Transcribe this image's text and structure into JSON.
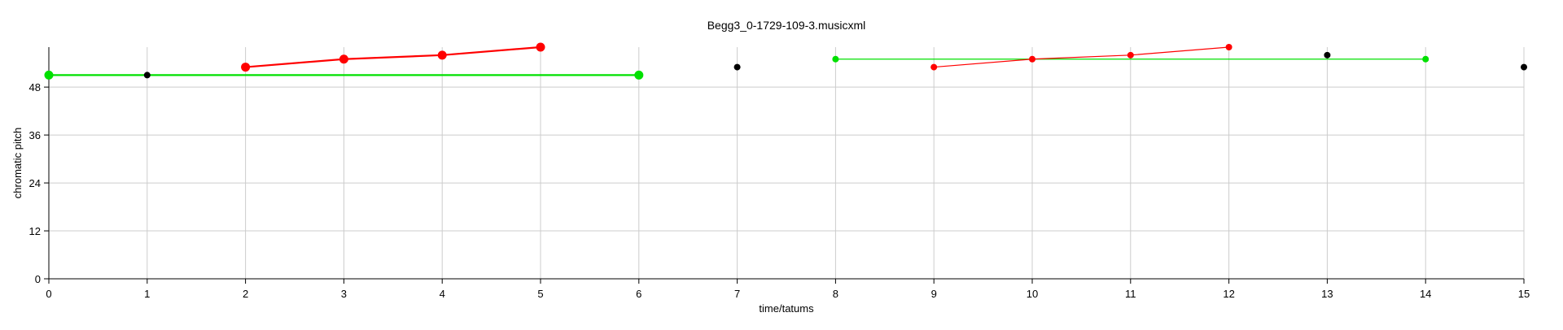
{
  "chart_data": {
    "type": "scatter",
    "title": "Begg3_0-1729-109-3.musicxml",
    "xlabel": "time/tatums",
    "ylabel": "chromatic pitch",
    "xlim": [
      0,
      15
    ],
    "ylim": [
      0,
      58
    ],
    "x_ticks": [
      0,
      1,
      2,
      3,
      4,
      5,
      6,
      7,
      8,
      9,
      10,
      11,
      12,
      13,
      14,
      15
    ],
    "y_ticks": [
      0,
      12,
      24,
      36,
      48
    ],
    "grid": true,
    "colors": {
      "red": "#ff0000",
      "green": "#00e000",
      "black": "#000000",
      "grid": "#cccccc"
    },
    "series": [
      {
        "color": "green",
        "connected": true,
        "marker": "large",
        "points": [
          {
            "x": 0,
            "y": 51
          },
          {
            "x": 6,
            "y": 51
          }
        ]
      },
      {
        "color": "red",
        "connected": true,
        "marker": "large",
        "points": [
          {
            "x": 2,
            "y": 53
          },
          {
            "x": 3,
            "y": 55
          },
          {
            "x": 4,
            "y": 56
          },
          {
            "x": 5,
            "y": 58
          }
        ]
      },
      {
        "color": "green",
        "connected": true,
        "marker": "small",
        "points": [
          {
            "x": 8,
            "y": 55
          },
          {
            "x": 14,
            "y": 55
          }
        ]
      },
      {
        "color": "red",
        "connected": true,
        "marker": "small",
        "points": [
          {
            "x": 9,
            "y": 53
          },
          {
            "x": 10,
            "y": 55
          },
          {
            "x": 11,
            "y": 56
          },
          {
            "x": 12,
            "y": 58
          }
        ]
      },
      {
        "color": "black",
        "connected": false,
        "marker": "small",
        "points": [
          {
            "x": 1,
            "y": 51
          },
          {
            "x": 7,
            "y": 53
          },
          {
            "x": 13,
            "y": 56
          },
          {
            "x": 15,
            "y": 53
          }
        ]
      }
    ]
  }
}
